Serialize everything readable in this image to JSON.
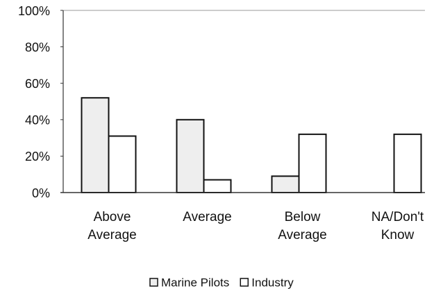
{
  "chart_data": {
    "type": "bar",
    "categories": [
      "Above Average",
      "Average",
      "Below Average",
      "NA/Don't Know"
    ],
    "series": [
      {
        "name": "Marine Pilots",
        "color": "#eeeeee",
        "values": [
          52,
          40,
          9,
          0
        ]
      },
      {
        "name": "Industry",
        "color": "#ffffff",
        "values": [
          31,
          7,
          32,
          32
        ]
      }
    ],
    "ylim": [
      0,
      100
    ],
    "yticks": [
      {
        "value": 0,
        "label": "0%"
      },
      {
        "value": 20,
        "label": "20%"
      },
      {
        "value": 40,
        "label": "40%"
      },
      {
        "value": 60,
        "label": "60%"
      },
      {
        "value": 80,
        "label": "80%"
      },
      {
        "value": 100,
        "label": "100%"
      }
    ],
    "legend": "bottom"
  }
}
